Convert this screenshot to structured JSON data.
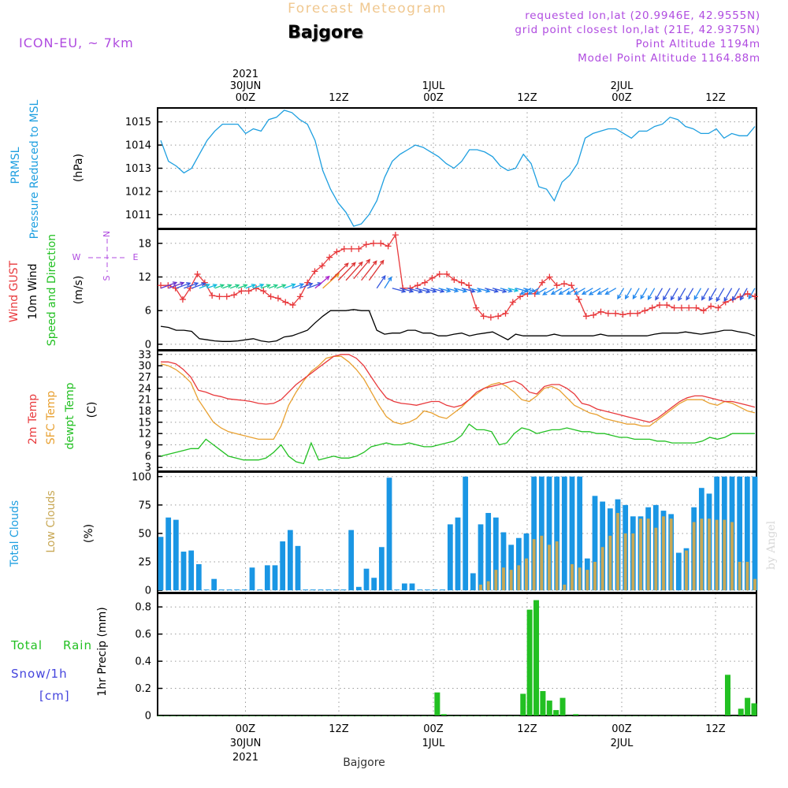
{
  "header": {
    "title": "Forecast Meteogram",
    "location": "Bajgore",
    "model": "ICON-EU, ~ 7km",
    "requested": "requested lon,lat (20.9946E, 42.9555N)",
    "grid_point": "grid point closest lon,lat (21E, 42.9375N)",
    "point_altitude": "Point Altitude 1194m",
    "model_altitude": "Model Point Altitude 1164.88m",
    "footer_location": "Bajgore",
    "credit": "by Angel"
  },
  "time_axis": {
    "top_labels": [
      {
        "lines": [
          "2021",
          "30JUN",
          "00Z"
        ]
      },
      {
        "lines": [
          "12Z"
        ]
      },
      {
        "lines": [
          "1JUL",
          "00Z"
        ]
      },
      {
        "lines": [
          "12Z"
        ]
      },
      {
        "lines": [
          "2JUL",
          "00Z"
        ]
      },
      {
        "lines": [
          "12Z"
        ]
      }
    ],
    "bottom_labels": [
      {
        "lines": [
          "00Z",
          "30JUN",
          "2021"
        ]
      },
      {
        "lines": [
          "12Z"
        ]
      },
      {
        "lines": [
          "00Z",
          "1JUL"
        ]
      },
      {
        "lines": [
          "12Z"
        ]
      },
      {
        "lines": [
          "00Z",
          "2JUL"
        ]
      },
      {
        "lines": [
          "12Z"
        ]
      }
    ]
  },
  "colors": {
    "pressure": "#1e9fe0",
    "gust": "#e8393c",
    "wind": "#000000",
    "temp": "#e8393c",
    "sfc": "#e8a030",
    "dewpt": "#22c022",
    "total_clouds": "#1a96e4",
    "low_clouds": "#c8a855",
    "rain": "#22c022",
    "snow": "#4444dd",
    "title": "#f0c890",
    "info": "#b04ce0"
  },
  "panels": {
    "pressure": {
      "labels": [
        "PRMSL",
        "Pressure Reduced to MSL",
        "(hPa)"
      ],
      "yticks": [
        1011,
        1012,
        1013,
        1014,
        1015
      ]
    },
    "wind": {
      "labels": [
        "Wind GUST",
        "10m Wind",
        "Speed and Direction",
        "(m/s)"
      ],
      "compass": [
        "N",
        "W",
        "E",
        "S"
      ],
      "yticks": [
        0,
        6,
        12,
        18
      ]
    },
    "temp": {
      "labels": [
        "2m Temp",
        "SFC Temp",
        "dewpt Temp",
        "(C)"
      ],
      "yticks": [
        3,
        6,
        9,
        12,
        15,
        18,
        21,
        24,
        27,
        30,
        33
      ]
    },
    "clouds": {
      "labels": [
        "Total Clouds",
        "Low Clouds",
        "(%)"
      ],
      "yticks": [
        0,
        25,
        50,
        75,
        100
      ]
    },
    "precip": {
      "labels": [
        "Total",
        "Rain",
        "Snow/1h",
        "[cm]",
        "1hr Precip (mm)"
      ],
      "yticks": [
        "0",
        "0.2",
        "0.4",
        "0.6",
        "0.8"
      ]
    }
  },
  "chart_data": [
    {
      "type": "line",
      "title": "PRMSL Pressure Reduced to MSL",
      "ylabel": "(hPa)",
      "x_start": "2021-06-29 15Z",
      "x_step_hours": 1,
      "ylim": [
        1010.4,
        1015.6
      ],
      "series": [
        {
          "name": "PRMSL",
          "values": [
            1014.2,
            1013.3,
            1013.1,
            1012.8,
            1013.0,
            1013.6,
            1014.2,
            1014.6,
            1014.9,
            1014.9,
            1014.9,
            1014.5,
            1014.7,
            1014.6,
            1015.1,
            1015.2,
            1015.5,
            1015.4,
            1015.1,
            1014.9,
            1014.2,
            1012.9,
            1012.1,
            1011.5,
            1011.1,
            1010.5,
            1010.6,
            1011.0,
            1011.6,
            1012.6,
            1013.3,
            1013.6,
            1013.8,
            1014.0,
            1013.9,
            1013.7,
            1013.5,
            1013.2,
            1013.0,
            1013.3,
            1013.8,
            1013.8,
            1013.7,
            1013.5,
            1013.1,
            1012.9,
            1013.0,
            1013.6,
            1013.2,
            1012.2,
            1012.1,
            1011.6,
            1012.4,
            1012.7,
            1013.2,
            1014.3,
            1014.5,
            1014.6,
            1014.7,
            1014.7,
            1014.5,
            1014.3,
            1014.6,
            1014.6,
            1014.8,
            1014.9,
            1015.2,
            1015.1,
            1014.8,
            1014.7,
            1014.5,
            1014.5,
            1014.7,
            1014.3,
            1014.5,
            1014.4,
            1014.4,
            1014.8
          ]
        }
      ]
    },
    {
      "type": "line",
      "title": "Wind GUST / 10m Wind Speed and Direction",
      "ylabel": "(m/s)",
      "ylim": [
        0,
        20
      ],
      "series": [
        {
          "name": "Wind GUST",
          "values": [
            10.5,
            10.5,
            10.0,
            8.0,
            10.0,
            12.5,
            11.0,
            8.7,
            8.5,
            8.5,
            8.8,
            9.5,
            9.5,
            10.0,
            9.5,
            8.5,
            8.2,
            7.5,
            7.0,
            8.5,
            11.0,
            13.0,
            14.0,
            15.5,
            16.5,
            17.0,
            17.0,
            17.0,
            17.8,
            18.0,
            18.0,
            17.5,
            19.5,
            10.0,
            10.0,
            10.5,
            11.0,
            11.8,
            12.5,
            12.5,
            11.5,
            11.0,
            10.5,
            6.5,
            5.0,
            4.8,
            5.0,
            5.5,
            7.5,
            8.5,
            9.0,
            9.0,
            11.0,
            12.0,
            10.5,
            10.8,
            10.5,
            8.0,
            5.0,
            5.2,
            5.8,
            5.5,
            5.5,
            5.3,
            5.5,
            5.5,
            6.0,
            6.5,
            7.0,
            7.0,
            6.5,
            6.5,
            6.5,
            6.5,
            6.0,
            6.8,
            6.5,
            7.5,
            8.0,
            8.5,
            9.0,
            8.5
          ]
        },
        {
          "name": "10m Wind",
          "values": [
            3.2,
            3.0,
            2.5,
            2.5,
            2.3,
            1.0,
            0.8,
            0.6,
            0.5,
            0.5,
            0.6,
            0.8,
            1.0,
            0.6,
            0.4,
            0.6,
            1.3,
            1.5,
            2.0,
            2.5,
            3.8,
            5.0,
            6.0,
            6.0,
            6.0,
            6.2,
            6.0,
            6.0,
            2.5,
            1.8,
            2.0,
            2.0,
            2.5,
            2.5,
            2.0,
            2.0,
            1.5,
            1.5,
            1.8,
            2.0,
            1.5,
            1.8,
            2.0,
            2.2,
            1.5,
            0.8,
            1.8,
            1.5,
            1.5,
            1.5,
            1.5,
            1.8,
            1.5,
            1.5,
            1.5,
            1.5,
            1.5,
            1.8,
            1.5,
            1.5,
            1.5,
            1.5,
            1.5,
            1.5,
            1.8,
            2.0,
            2.0,
            2.0,
            2.2,
            2.0,
            1.8,
            2.0,
            2.2,
            2.5,
            2.5,
            2.2,
            2.0,
            1.5
          ]
        }
      ]
    },
    {
      "type": "line",
      "title": "2m Temp / SFC Temp / dewpt Temp",
      "ylabel": "(C)",
      "ylim": [
        2,
        34
      ],
      "series": [
        {
          "name": "2m Temp",
          "values": [
            31.0,
            31.0,
            30.5,
            29.0,
            27.0,
            23.5,
            23.0,
            22.2,
            21.8,
            21.2,
            21.0,
            20.8,
            20.5,
            20.0,
            19.8,
            20.0,
            21.0,
            23.0,
            25.0,
            26.5,
            28.0,
            29.5,
            31.0,
            32.5,
            33.0,
            33.0,
            32.0,
            30.0,
            27.0,
            24.0,
            21.5,
            20.5,
            20.0,
            19.8,
            19.5,
            20.0,
            20.5,
            20.5,
            19.5,
            19.0,
            19.5,
            21.0,
            23.0,
            24.0,
            24.5,
            25.0,
            25.5,
            26.0,
            25.0,
            23.0,
            22.5,
            24.5,
            25.0,
            25.0,
            24.0,
            22.5,
            20.0,
            19.5,
            18.5,
            18.0,
            17.5,
            17.0,
            16.5,
            16.0,
            15.5,
            15.0,
            16.0,
            17.5,
            19.0,
            20.5,
            21.5,
            22.0,
            22.0,
            21.5,
            21.0,
            20.5,
            20.5,
            20.0,
            19.5,
            19.0
          ]
        },
        {
          "name": "SFC Temp",
          "values": [
            30.5,
            30.0,
            29.0,
            27.5,
            25.5,
            21.0,
            18.0,
            15.0,
            13.5,
            12.5,
            12.0,
            11.5,
            11.0,
            10.5,
            10.5,
            10.5,
            14.0,
            19.5,
            23.0,
            26.0,
            28.5,
            30.0,
            32.0,
            32.5,
            32.5,
            31.0,
            29.0,
            26.5,
            23.0,
            19.5,
            16.5,
            15.0,
            14.5,
            15.0,
            16.0,
            18.0,
            17.5,
            16.5,
            16.0,
            17.5,
            19.0,
            21.0,
            22.5,
            24.0,
            25.0,
            25.5,
            24.5,
            23.0,
            21.0,
            20.5,
            22.0,
            24.0,
            24.5,
            23.5,
            21.5,
            19.5,
            18.5,
            17.5,
            17.0,
            16.0,
            15.5,
            15.0,
            14.5,
            14.5,
            14.0,
            14.0,
            15.5,
            17.0,
            18.5,
            20.0,
            21.0,
            21.0,
            21.0,
            20.0,
            19.5,
            20.5,
            20.0,
            19.0,
            18.0,
            17.5
          ]
        },
        {
          "name": "dewpt Temp",
          "values": [
            6.0,
            6.5,
            7.0,
            7.5,
            8.0,
            8.0,
            10.5,
            9.0,
            7.5,
            6.0,
            5.5,
            5.0,
            5.0,
            5.0,
            5.5,
            7.0,
            9.0,
            6.0,
            4.5,
            4.0,
            9.5,
            5.0,
            5.5,
            6.0,
            5.5,
            5.5,
            6.0,
            7.0,
            8.5,
            9.0,
            9.5,
            9.0,
            9.0,
            9.5,
            9.0,
            8.5,
            8.5,
            9.0,
            9.5,
            10.0,
            11.5,
            14.5,
            13.0,
            13.0,
            12.5,
            9.0,
            9.5,
            12.0,
            13.5,
            13.0,
            12.0,
            12.5,
            13.0,
            13.0,
            13.5,
            13.0,
            12.5,
            12.5,
            12.0,
            12.0,
            11.5,
            11.0,
            11.0,
            10.5,
            10.5,
            10.5,
            10.0,
            10.0,
            9.5,
            9.5,
            9.5,
            9.5,
            10.0,
            11.0,
            10.5,
            11.0,
            12.0,
            12.0,
            12.0,
            12.0
          ]
        }
      ]
    },
    {
      "type": "bar",
      "title": "Total Clouds / Low Clouds",
      "ylabel": "(%)",
      "ylim": [
        0,
        100
      ],
      "series": [
        {
          "name": "Total Clouds",
          "values": [
            47,
            64,
            62,
            34,
            35,
            23,
            0,
            10,
            0,
            0,
            0,
            0,
            20,
            0,
            22,
            22,
            43,
            53,
            39,
            0,
            0,
            0,
            0,
            0,
            0,
            53,
            3,
            19,
            11,
            38,
            99,
            0,
            6,
            6,
            0,
            0,
            0,
            0,
            58,
            64,
            100,
            15,
            58,
            68,
            64,
            51,
            40,
            46,
            50,
            100,
            100,
            100,
            100,
            100,
            100,
            100,
            28,
            83,
            78,
            72,
            80,
            75,
            65,
            65,
            73,
            75,
            70,
            67,
            33,
            37,
            73,
            90,
            85,
            100,
            100,
            100,
            100,
            100,
            100
          ]
        },
        {
          "name": "Low Clouds",
          "values": [
            0,
            0,
            0,
            0,
            0,
            0,
            0,
            0,
            0,
            0,
            0,
            0,
            0,
            0,
            0,
            0,
            0,
            0,
            0,
            0,
            0,
            0,
            0,
            0,
            0,
            0,
            0,
            0,
            0,
            0,
            0,
            0,
            0,
            0,
            0,
            0,
            0,
            0,
            0,
            0,
            0,
            0,
            5,
            8,
            18,
            20,
            18,
            22,
            28,
            45,
            48,
            40,
            43,
            5,
            23,
            20,
            18,
            25,
            38,
            48,
            68,
            50,
            50,
            63,
            63,
            55,
            65,
            63,
            0,
            35,
            60,
            63,
            63,
            62,
            62,
            60,
            25,
            25,
            10
          ]
        }
      ]
    },
    {
      "type": "bar",
      "title": "Total Rain Snow/1h [cm]",
      "ylabel": "1hr Precip (mm)",
      "ylim": [
        0,
        0.9
      ],
      "series": [
        {
          "name": "Total Rain",
          "values": [
            0,
            0,
            0,
            0,
            0,
            0,
            0,
            0,
            0,
            0,
            0,
            0,
            0,
            0,
            0,
            0,
            0,
            0,
            0,
            0,
            0,
            0,
            0,
            0,
            0,
            0,
            0,
            0,
            0,
            0,
            0,
            0,
            0,
            0,
            0,
            0,
            0,
            0,
            0,
            0,
            0,
            0,
            0.17,
            0.01,
            0,
            0,
            0,
            0,
            0,
            0,
            0,
            0,
            0,
            0,
            0,
            0.16,
            0.78,
            0.85,
            0.18,
            0.11,
            0.04,
            0.13,
            0,
            0.01,
            0,
            0,
            0,
            0,
            0,
            0,
            0,
            0,
            0,
            0,
            0,
            0,
            0,
            0,
            0,
            0,
            0,
            0,
            0,
            0,
            0,
            0,
            0.3,
            0,
            0.05,
            0.13,
            0.09
          ]
        },
        {
          "name": "Snow/1h",
          "values": []
        }
      ]
    }
  ]
}
